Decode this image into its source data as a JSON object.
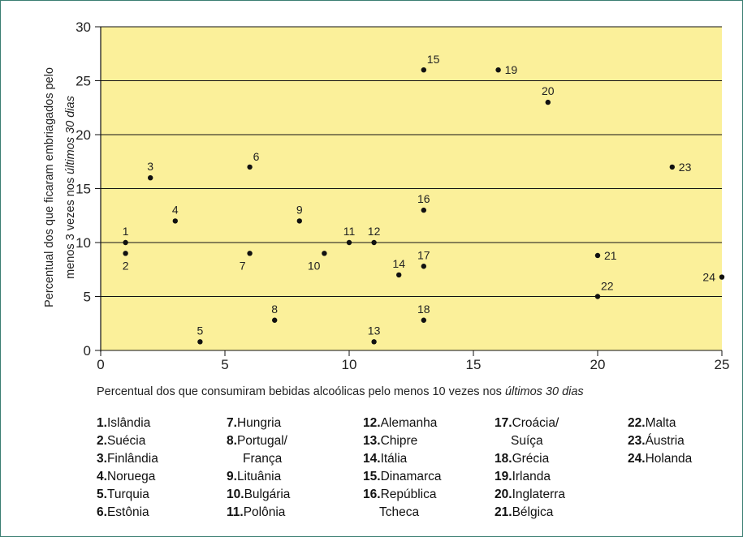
{
  "chart_data": {
    "type": "scatter",
    "title": "",
    "xlabel_main": "Percentual dos que consumiram bebidas alcoólicas pelo menos 10 vezes nos ",
    "xlabel_italic": "últimos 30 dias",
    "ylabel_line1": "Percentual dos que ficaram embriagados pelo",
    "ylabel_line2_main": "menos 3 vezes nos ",
    "ylabel_line2_italic": "últimos 30 dias",
    "xlim": [
      0,
      25
    ],
    "ylim": [
      0,
      30
    ],
    "x_ticks": [
      "0",
      "5",
      "10",
      "15",
      "20",
      "25"
    ],
    "y_ticks": [
      "0",
      "5",
      "10",
      "15",
      "20",
      "25",
      "30"
    ],
    "grid": "horizontal",
    "background_color": "#fbf09a",
    "grid_color": "#111111",
    "point_color": "#111111",
    "points": [
      {
        "label": "1",
        "x": 1,
        "y": 10,
        "pos": "n"
      },
      {
        "label": "2",
        "x": 1,
        "y": 9,
        "pos": "s"
      },
      {
        "label": "3",
        "x": 2,
        "y": 16,
        "pos": "n"
      },
      {
        "label": "4",
        "x": 3,
        "y": 12,
        "pos": "n"
      },
      {
        "label": "5",
        "x": 4,
        "y": 0.8,
        "pos": "n"
      },
      {
        "label": "6",
        "x": 6,
        "y": 17,
        "pos": "ne"
      },
      {
        "label": "7",
        "x": 6,
        "y": 9,
        "pos": "sw"
      },
      {
        "label": "8",
        "x": 7,
        "y": 2.8,
        "pos": "n"
      },
      {
        "label": "9",
        "x": 8,
        "y": 12,
        "pos": "n"
      },
      {
        "label": "10",
        "x": 9,
        "y": 9,
        "pos": "sw"
      },
      {
        "label": "11",
        "x": 10,
        "y": 10,
        "pos": "n"
      },
      {
        "label": "12",
        "x": 11,
        "y": 10,
        "pos": "n"
      },
      {
        "label": "13",
        "x": 11,
        "y": 0.8,
        "pos": "n"
      },
      {
        "label": "14",
        "x": 12,
        "y": 7,
        "pos": "n"
      },
      {
        "label": "15",
        "x": 13,
        "y": 26,
        "pos": "ne"
      },
      {
        "label": "16",
        "x": 13,
        "y": 13,
        "pos": "n"
      },
      {
        "label": "17",
        "x": 13,
        "y": 7.8,
        "pos": "n"
      },
      {
        "label": "18",
        "x": 13,
        "y": 2.8,
        "pos": "n"
      },
      {
        "label": "19",
        "x": 16,
        "y": 26,
        "pos": "e"
      },
      {
        "label": "20",
        "x": 18,
        "y": 23,
        "pos": "n"
      },
      {
        "label": "21",
        "x": 20,
        "y": 8.8,
        "pos": "e"
      },
      {
        "label": "22",
        "x": 20,
        "y": 5,
        "pos": "ne"
      },
      {
        "label": "23",
        "x": 23,
        "y": 17,
        "pos": "e"
      },
      {
        "label": "24",
        "x": 25,
        "y": 6.8,
        "pos": "w"
      }
    ]
  },
  "legend": {
    "columns": [
      [
        {
          "num": "1.",
          "name": "Islândia"
        },
        {
          "num": "2.",
          "name": "Suécia"
        },
        {
          "num": "3.",
          "name": "Finlândia"
        },
        {
          "num": "4.",
          "name": "Noruega"
        },
        {
          "num": "5.",
          "name": "Turquia"
        },
        {
          "num": "6.",
          "name": "Estônia"
        }
      ],
      [
        {
          "num": "7.",
          "name": "Hungria"
        },
        {
          "num": "8.",
          "name": "Portugal/",
          "cont": "França"
        },
        {
          "num": "9.",
          "name": "Lituânia"
        },
        {
          "num": "10.",
          "name": "Bulgária"
        },
        {
          "num": "11.",
          "name": "Polônia"
        }
      ],
      [
        {
          "num": "12.",
          "name": "Alemanha"
        },
        {
          "num": "13.",
          "name": "Chipre"
        },
        {
          "num": "14.",
          "name": "Itália"
        },
        {
          "num": "15.",
          "name": "Dinamarca"
        },
        {
          "num": "16.",
          "name": "República",
          "cont": "Tcheca"
        }
      ],
      [
        {
          "num": "17.",
          "name": "Croácia/",
          "cont": "Suíça"
        },
        {
          "num": "18.",
          "name": "Grécia"
        },
        {
          "num": "19.",
          "name": "Irlanda"
        },
        {
          "num": "20.",
          "name": "Inglaterra"
        },
        {
          "num": "21.",
          "name": "Bélgica"
        }
      ],
      [
        {
          "num": "22.",
          "name": "Malta"
        },
        {
          "num": "23.",
          "name": "Áustria"
        },
        {
          "num": "24.",
          "name": "Holanda"
        }
      ]
    ]
  }
}
